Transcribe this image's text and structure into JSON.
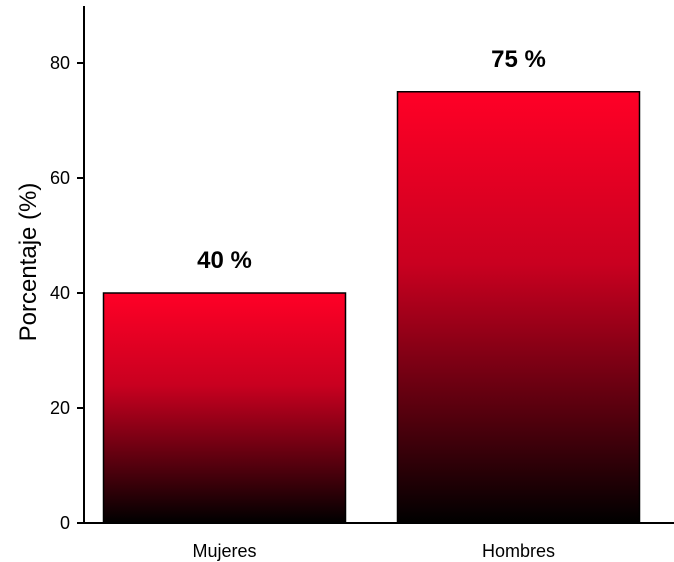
{
  "chart_data": {
    "type": "bar",
    "categories": [
      "Mujeres",
      "Hombres"
    ],
    "values": [
      40,
      75
    ],
    "data_labels": [
      "40 %",
      "75 %"
    ],
    "title": "",
    "xlabel": "",
    "ylabel": "Porcentaje (%)",
    "ylim": [
      0,
      90
    ],
    "yticks": [
      0,
      20,
      40,
      60,
      80
    ],
    "grid": false,
    "bar_gradient": {
      "top": "#ff0026",
      "bottom": "#000000"
    },
    "bar_outline": "#000000"
  }
}
